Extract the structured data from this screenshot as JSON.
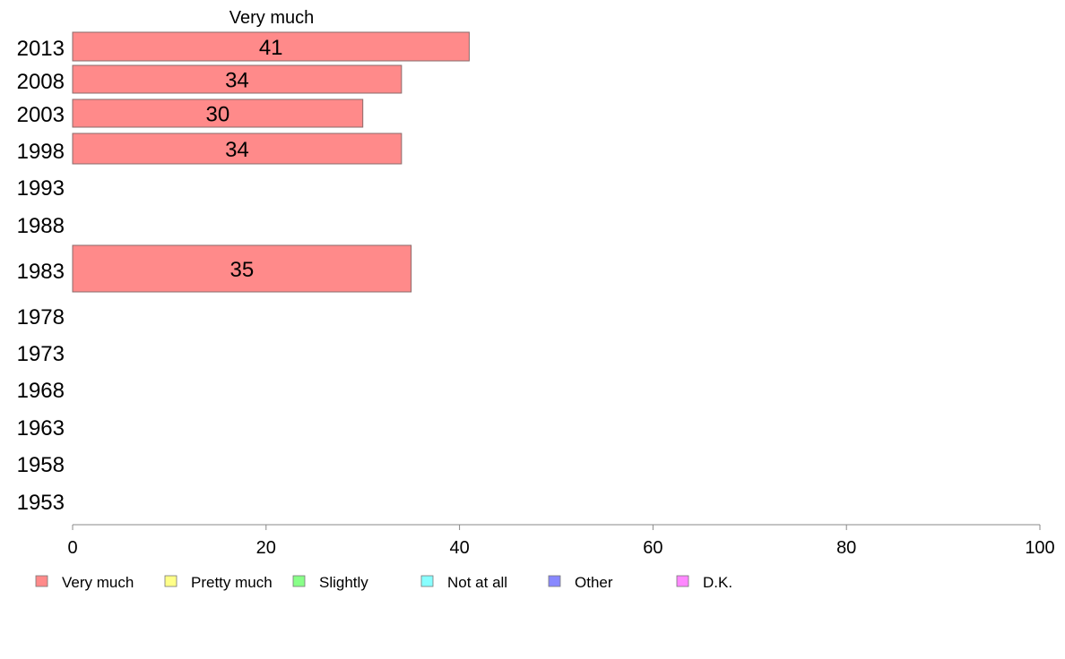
{
  "chart_data": {
    "type": "bar",
    "orientation": "horizontal",
    "title": "",
    "xlabel": "",
    "ylabel": "",
    "xlim": [
      0,
      100
    ],
    "xticks": [
      0,
      20,
      40,
      60,
      80,
      100
    ],
    "grid": false,
    "categories": [
      "2013",
      "2008",
      "2003",
      "1998",
      "1993",
      "1988",
      "1983",
      "1978",
      "1973",
      "1968",
      "1963",
      "1958",
      "1953"
    ],
    "series": [
      {
        "name": "Very much",
        "values": [
          41,
          34,
          30,
          34,
          null,
          null,
          35,
          null,
          null,
          null,
          null,
          null,
          null
        ],
        "color": "#ff8a8a"
      }
    ],
    "column_header": "Very much",
    "legend_position": "bottom",
    "legend": [
      {
        "label": "Very much",
        "color": "#ff8a8a"
      },
      {
        "label": "Pretty much",
        "color": "#ffff88"
      },
      {
        "label": "Slightly",
        "color": "#88ff88"
      },
      {
        "label": "Not at all",
        "color": "#88ffff"
      },
      {
        "label": "Other",
        "color": "#8888ff"
      },
      {
        "label": "D.K.",
        "color": "#ff88ff"
      }
    ]
  }
}
